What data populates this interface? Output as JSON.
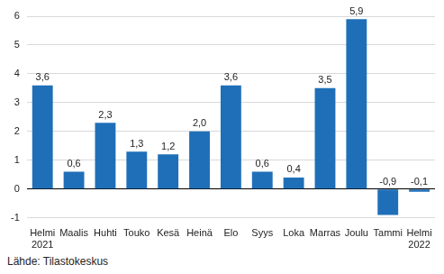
{
  "chart_data": {
    "type": "bar",
    "categories": [
      [
        "Helmi",
        "2021"
      ],
      "Maalis",
      "Huhti",
      "Touko",
      "Kesä",
      "Heinä",
      "Elo",
      "Syys",
      "Loka",
      "Marras",
      "Joulu",
      "Tammi",
      [
        "Helmi",
        "2022"
      ]
    ],
    "values": [
      3.6,
      0.6,
      2.3,
      1.3,
      1.2,
      2.0,
      3.6,
      0.6,
      0.4,
      3.5,
      5.9,
      -0.9,
      -0.1
    ],
    "value_labels": [
      "3,6",
      "0,6",
      "2,3",
      "1,3",
      "1,2",
      "2,0",
      "3,6",
      "0,6",
      "0,4",
      "3,5",
      "5,9",
      "-0,9",
      "-0,1"
    ],
    "data_labels": true,
    "color": "#1f6fb8",
    "ylim": [
      -1,
      6
    ],
    "yticks": [
      -1,
      0,
      1,
      2,
      3,
      4,
      5,
      6
    ],
    "grid": true,
    "source": "Lähde: Tilastokeskus"
  }
}
